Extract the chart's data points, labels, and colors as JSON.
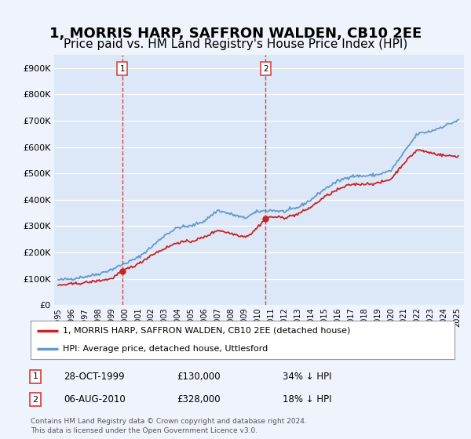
{
  "title": "1, MORRIS HARP, SAFFRON WALDEN, CB10 2EE",
  "subtitle": "Price paid vs. HM Land Registry's House Price Index (HPI)",
  "title_fontsize": 13,
  "subtitle_fontsize": 11,
  "background_color": "#eef3fc",
  "plot_bg_color": "#dce8f8",
  "grid_color": "#ffffff",
  "hpi_line_color": "#6699cc",
  "price_line_color": "#cc2222",
  "dashed_line_color": "#dd4444",
  "marker_color": "#cc2222",
  "transaction1_date": 1999.82,
  "transaction1_price": 130000,
  "transaction1_label": "1",
  "transaction2_date": 2010.59,
  "transaction2_price": 328000,
  "transaction2_label": "2",
  "legend_entry1": "1, MORRIS HARP, SAFFRON WALDEN, CB10 2EE (detached house)",
  "legend_entry2": "HPI: Average price, detached house, Uttlesford",
  "table_row1_num": "1",
  "table_row1_date": "28-OCT-1999",
  "table_row1_price": "£130,000",
  "table_row1_note": "34% ↓ HPI",
  "table_row2_num": "2",
  "table_row2_date": "06-AUG-2010",
  "table_row2_price": "£328,000",
  "table_row2_note": "18% ↓ HPI",
  "footer_line1": "Contains HM Land Registry data © Crown copyright and database right 2024.",
  "footer_line2": "This data is licensed under the Open Government Licence v3.0.",
  "ylim_min": 0,
  "ylim_max": 950000,
  "yticks": [
    0,
    100000,
    200000,
    300000,
    400000,
    500000,
    600000,
    700000,
    800000,
    900000
  ],
  "xlim_min": 1994.7,
  "xlim_max": 2025.5,
  "xtick_years": [
    1995,
    1996,
    1997,
    1998,
    1999,
    2000,
    2001,
    2002,
    2003,
    2004,
    2005,
    2006,
    2007,
    2008,
    2009,
    2010,
    2011,
    2012,
    2013,
    2014,
    2015,
    2016,
    2017,
    2018,
    2019,
    2020,
    2021,
    2022,
    2023,
    2024,
    2025
  ]
}
